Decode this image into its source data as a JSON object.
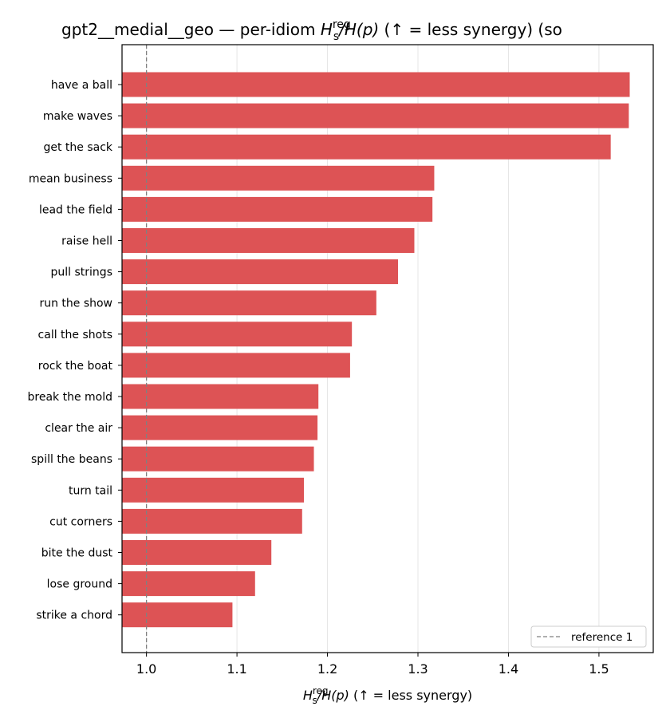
{
  "chart_data": {
    "type": "bar",
    "orientation": "horizontal",
    "title": {
      "prefix": "gpt2__medial__geo — per-idiom ",
      "math": {
        "base": "H",
        "sub": "s",
        "sup": "reg",
        "rest": "/H(p)"
      },
      "suffix": "  (↑ = less synergy) (so"
    },
    "xlabel": {
      "math": {
        "base": "H",
        "sub": "s",
        "sup": "reg",
        "rest": "/H(p)"
      },
      "suffix": "  (↑ = less synergy)"
    },
    "categories": [
      "have a ball",
      "make waves",
      "get the sack",
      "mean business",
      "lead the field",
      "raise hell",
      "pull strings",
      "run the show",
      "call the shots",
      "rock the boat",
      "break the mold",
      "clear the air",
      "spill the beans",
      "turn tail",
      "cut corners",
      "bite the dust",
      "lose ground",
      "strike a chord"
    ],
    "values": [
      1.534,
      1.533,
      1.513,
      1.318,
      1.316,
      1.296,
      1.278,
      1.254,
      1.227,
      1.225,
      1.19,
      1.189,
      1.185,
      1.174,
      1.172,
      1.138,
      1.12,
      1.095
    ],
    "xlim": [
      0.973,
      1.56
    ],
    "xticks": [
      1.0,
      1.1,
      1.2,
      1.3,
      1.4,
      1.5
    ],
    "xtick_labels": [
      "1.0",
      "1.1",
      "1.2",
      "1.3",
      "1.4",
      "1.5"
    ],
    "reference_line": {
      "value": 1.0,
      "label": "reference 1"
    },
    "grid": "x",
    "legend_position": "lower-right",
    "colors": {
      "bar": "#dd5355",
      "reference": "#808080",
      "grid": "#e6e6e6"
    }
  }
}
